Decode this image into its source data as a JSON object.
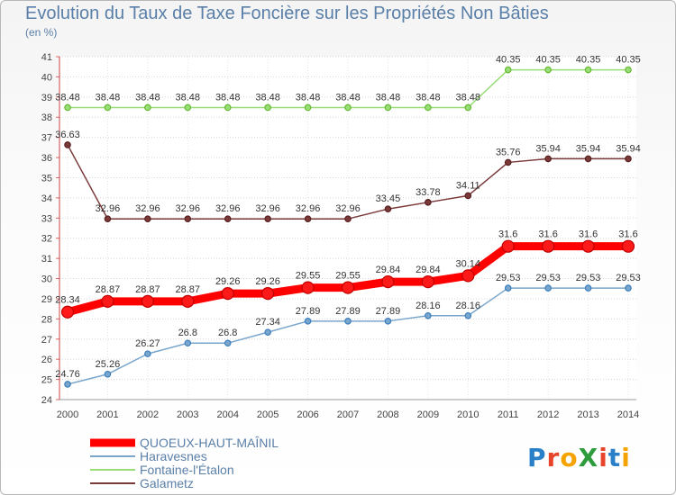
{
  "title": "Evolution du Taux de Taxe Foncière sur les Propriétés Non Bâties",
  "unit_label": "(en %)",
  "logo": {
    "text": "ProXiti",
    "colors": [
      "#2a7fc9",
      "#e8432b",
      "#f4a300",
      "#2e9b3c",
      "#e8432b",
      "#2a7fc9",
      "#f4a300"
    ]
  },
  "chart_data": {
    "type": "line",
    "title": "Evolution du Taux de Taxe Foncière sur les Propriétés Non Bâties",
    "ylabel": "(en %)",
    "xlabel": "",
    "ylim": [
      24,
      41
    ],
    "yticks": [
      24,
      25,
      26,
      27,
      28,
      29,
      30,
      31,
      32,
      33,
      34,
      35,
      36,
      37,
      38,
      39,
      40,
      41
    ],
    "grid": true,
    "legend_position": "bottom-left",
    "x": [
      "2000",
      "2001",
      "2002",
      "2003",
      "2004",
      "2005",
      "2006",
      "2007",
      "2008",
      "2009",
      "2010",
      "2011",
      "2012",
      "2013",
      "2014"
    ],
    "series": [
      {
        "name": "QUOEUX-HAUT-MAÎNIL",
        "color": "#ff0000",
        "marker": "#c00000",
        "emphasis": true,
        "values": [
          28.34,
          28.87,
          28.87,
          28.87,
          29.26,
          29.26,
          29.55,
          29.55,
          29.84,
          29.84,
          30.14,
          31.6,
          31.6,
          31.6,
          31.6
        ],
        "labels": [
          "28.34",
          "28.87",
          "28.87",
          "28.87",
          "29.26",
          "29.26",
          "29.55",
          "29.55",
          "29.84",
          "29.84",
          "30.14",
          "31.6",
          "31.6",
          "31.6",
          "31.6"
        ]
      },
      {
        "name": "Haravesnes",
        "color": "#7aa6cc",
        "marker": "#3a7fbf",
        "emphasis": false,
        "values": [
          24.76,
          25.26,
          26.27,
          26.8,
          26.8,
          27.34,
          27.89,
          27.89,
          27.89,
          28.16,
          28.16,
          29.53,
          29.53,
          29.53,
          29.53
        ],
        "labels": [
          "24.76",
          "25.26",
          "26.27",
          "26.8",
          "26.8",
          "27.34",
          "27.89",
          "27.89",
          "27.89",
          "28.16",
          "28.16",
          "29.53",
          "29.53",
          "29.53",
          "29.53"
        ]
      },
      {
        "name": "Fontaine-l'Étalon",
        "color": "#99dd77",
        "marker": "#66bb33",
        "emphasis": false,
        "values": [
          38.48,
          38.48,
          38.48,
          38.48,
          38.48,
          38.48,
          38.48,
          38.48,
          38.48,
          38.48,
          38.48,
          40.35,
          40.35,
          40.35,
          40.35
        ],
        "labels": [
          "38.48",
          "38.48",
          "38.48",
          "38.48",
          "38.48",
          "38.48",
          "38.48",
          "38.48",
          "38.48",
          "38.48",
          "38.48",
          "40.35",
          "40.35",
          "40.35",
          "40.35"
        ]
      },
      {
        "name": "Galametz",
        "color": "#7a3a3a",
        "marker": "#5a1f1f",
        "emphasis": false,
        "values": [
          36.63,
          32.96,
          32.96,
          32.96,
          32.96,
          32.96,
          32.96,
          32.96,
          33.45,
          33.78,
          34.11,
          35.76,
          35.94,
          35.94,
          35.94
        ],
        "labels": [
          "36.63",
          "32.96",
          "32.96",
          "32.96",
          "32.96",
          "32.96",
          "32.96",
          "32.96",
          "33.45",
          "33.78",
          "34.11",
          "35.76",
          "35.94",
          "35.94",
          "35.94"
        ]
      }
    ]
  }
}
